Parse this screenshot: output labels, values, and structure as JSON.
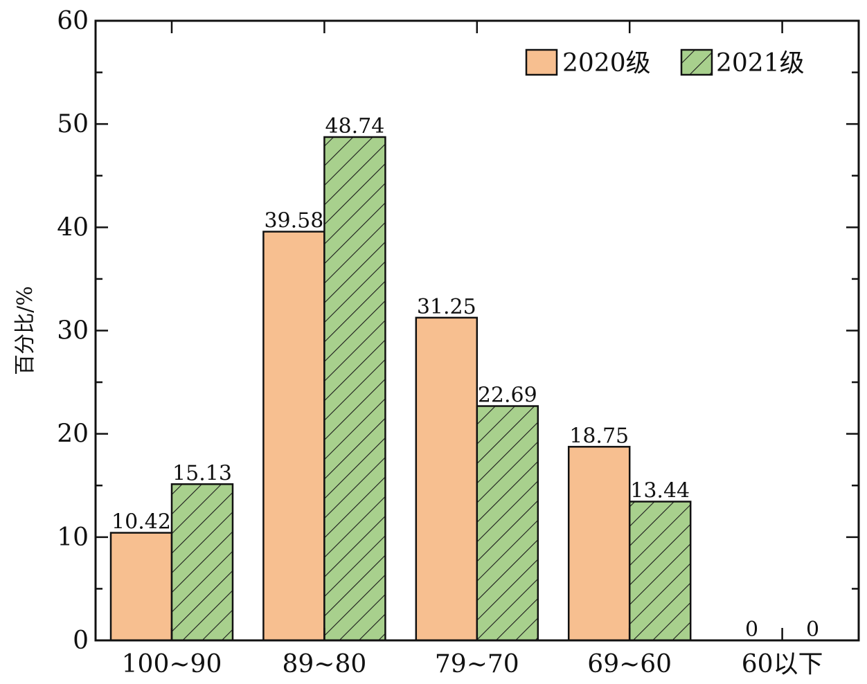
{
  "chart_data": {
    "type": "bar",
    "title": "",
    "xlabel": "",
    "ylabel": "百分比/%",
    "categories": [
      "100~90",
      "89~80",
      "79~70",
      "69~60",
      "60以下"
    ],
    "series": [
      {
        "name": "2020级",
        "values": [
          10.42,
          39.58,
          31.25,
          18.75,
          0
        ],
        "labels": [
          "10.42",
          "39.58",
          "31.25",
          "18.75",
          "0"
        ],
        "color": "#f7bf90",
        "pattern": "none"
      },
      {
        "name": "2021级",
        "values": [
          15.13,
          48.74,
          22.69,
          13.44,
          0
        ],
        "labels": [
          "15.13",
          "48.74",
          "22.69",
          "13.44",
          "0"
        ],
        "color": "#a8d08d",
        "pattern": "diagonal-hatch"
      }
    ],
    "ylim": [
      0,
      60
    ],
    "yticks": [
      0,
      10,
      20,
      30,
      40,
      50,
      60
    ],
    "grid": false,
    "legend_position": "top-right"
  }
}
